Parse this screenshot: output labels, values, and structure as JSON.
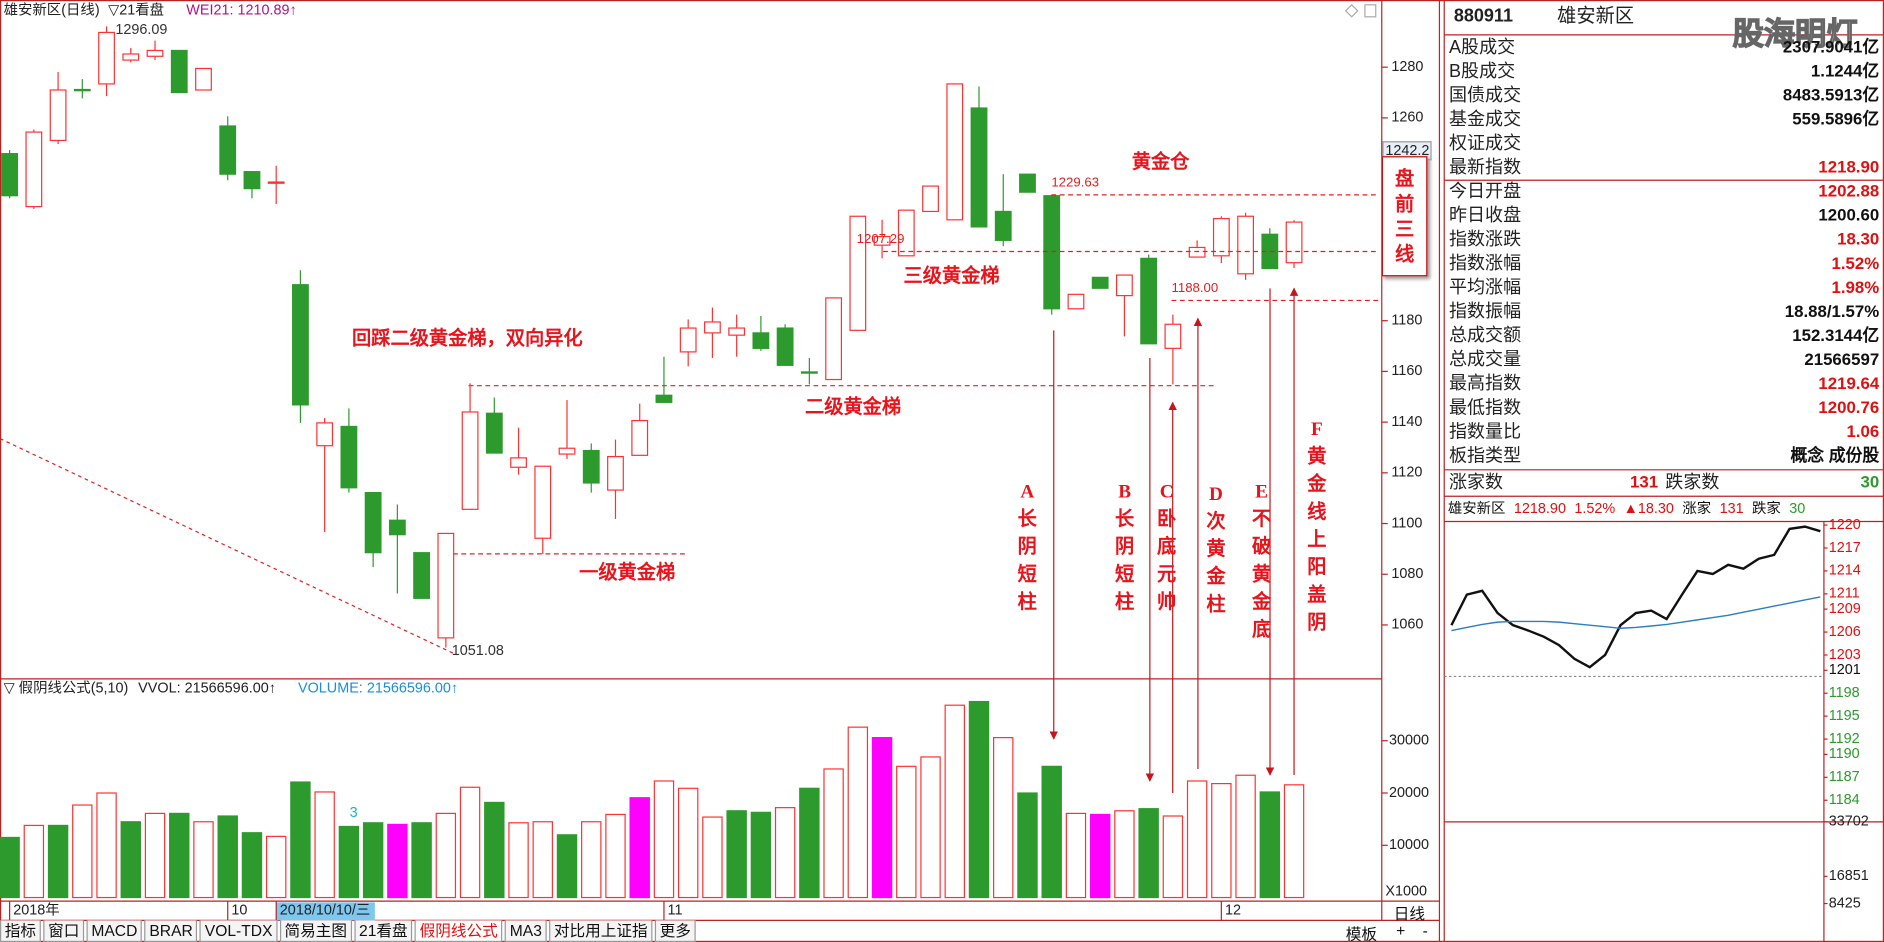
{
  "header": {
    "name": "雄安新区(日线)",
    "panel": "▽21看盘",
    "indicator": "WEI21: 1210.89↑"
  },
  "volume_header": {
    "formula": "▽ 假阴线公式(5,10)",
    "vvol": "VVOL: 21566596.00↑",
    "volume": "VOLUME: 21566596.00↑"
  },
  "cursor_price": "1242.2",
  "volume_unit": "X1000",
  "volume_note": "3",
  "chart_data": [
    {
      "type": "candlestick",
      "categories": [
        "2018年",
        null,
        null,
        null,
        null,
        null,
        null,
        null,
        null,
        "10",
        null,
        "2018/10/10/三",
        null,
        null,
        null,
        null,
        null,
        null,
        null,
        null,
        null,
        null,
        null,
        null,
        null,
        null,
        null,
        "11",
        null,
        null,
        null,
        null,
        null,
        null,
        null,
        null,
        null,
        null,
        null,
        null,
        null,
        null,
        null,
        null,
        null,
        null,
        null,
        null,
        null,
        null,
        "12",
        null,
        null,
        null
      ],
      "open": [
        1245.9,
        1225.0,
        1251.1,
        1271.2,
        1273.4,
        1282.8,
        1284.3,
        1286.6,
        1271.0,
        1256.8,
        1238.8,
        1234.3,
        1194.2,
        1130.7,
        1138.3,
        1112.2,
        1101.3,
        1088.5,
        1054.9,
        1105.6,
        1143.5,
        1122.2,
        1094.2,
        1127.4,
        1128.8,
        1113.2,
        1126.9,
        1150.6,
        1167.7,
        1175.2,
        1174.3,
        1175.2,
        1177.1,
        1159.8,
        1156.8,
        1176.2,
        1209.8,
        1205.6,
        1223.1,
        1219.8,
        1263.9,
        1223.1,
        1237.8,
        1229.3,
        1184.7,
        1197.1,
        1189.9,
        1204.6,
        1169.1,
        1205.1,
        1205.6,
        1198.5,
        1214.1,
        1202.88
      ],
      "high": [
        1247.3,
        1255.4,
        1278.1,
        1275.3,
        1296.09,
        1287.6,
        1290.5,
        1286.6,
        1279.5,
        1260.6,
        1238.8,
        1241.1,
        1199.9,
        1141.6,
        1145.4,
        1112.2,
        1107.5,
        1088.5,
        1096.1,
        1155.3,
        1149.7,
        1137.8,
        1122.6,
        1148.7,
        1131.6,
        1133.1,
        1147.3,
        1165.8,
        1180.5,
        1185.2,
        1182.4,
        1181.9,
        1178.6,
        1165.3,
        1189.0,
        1221.2,
        1219.8,
        1223.6,
        1233.1,
        1273.4,
        1272.4,
        1237.8,
        1237.8,
        1229.63,
        1190.4,
        1197.1,
        1198.0,
        1206.1,
        1182.4,
        1211.7,
        1221.2,
        1222.6,
        1216.5,
        1219.64
      ],
      "low": [
        1228.3,
        1224.1,
        1249.7,
        1267.7,
        1268.6,
        1281.9,
        1282.8,
        1270.0,
        1271.0,
        1235.4,
        1228.3,
        1226.0,
        1139.7,
        1096.6,
        1112.2,
        1082.8,
        1072.4,
        1070.5,
        1051.08,
        1105.6,
        1127.8,
        1119.3,
        1088.0,
        1125.5,
        1112.2,
        1101.8,
        1126.9,
        1147.8,
        1162.0,
        1165.3,
        1165.8,
        1168.1,
        1162.4,
        1154.9,
        1156.8,
        1176.2,
        1204.6,
        1205.6,
        1223.1,
        1219.8,
        1217.0,
        1209.4,
        1230.7,
        1182.4,
        1184.7,
        1192.8,
        1173.8,
        1170.9,
        1154.9,
        1205.1,
        1202.7,
        1196.1,
        1200.4,
        1200.76
      ],
      "close": [
        1229.3,
        1254.4,
        1271.0,
        1270.8,
        1293.7,
        1285.2,
        1286.6,
        1270.0,
        1279.5,
        1237.8,
        1232.1,
        1234.7,
        1146.8,
        1139.7,
        1114.1,
        1088.5,
        1095.6,
        1070.5,
        1096.1,
        1144.0,
        1127.8,
        1125.9,
        1122.6,
        1129.7,
        1116.0,
        1126.4,
        1140.6,
        1147.8,
        1177.1,
        1179.5,
        1177.1,
        1169.1,
        1162.4,
        1159.6,
        1189.0,
        1221.2,
        1213.2,
        1223.6,
        1233.1,
        1273.4,
        1217.0,
        1211.7,
        1230.7,
        1184.7,
        1190.4,
        1192.8,
        1198.0,
        1170.9,
        1178.6,
        1208.9,
        1220.3,
        1221.2,
        1200.6,
        1218.9
      ],
      "up_color": "#ff3232",
      "down_color": "#2d9a2d",
      "ylim": [
        1041.1,
        1306.5
      ],
      "yticks": [
        1060,
        1080,
        1100,
        1120,
        1140,
        1160,
        1180,
        1200,
        1220,
        1240,
        1260,
        1280
      ],
      "price_labels": [
        {
          "value": 1296.09,
          "label": "1296.09"
        },
        {
          "value": 1051.08,
          "label": "1051.08"
        },
        {
          "value": 1229.63,
          "label": "1229.63"
        },
        {
          "value": 1207.29,
          "label": "1207.29"
        },
        {
          "value": 1188.0,
          "label": "1188.00"
        }
      ],
      "annotations": [
        "黄金仓",
        "三级黄金梯",
        "回踩二级黄金梯，双向异化",
        "二级黄金梯",
        "一级黄金梯"
      ],
      "box_label": "盘前三线",
      "callouts": [
        "A长阴短柱",
        "B长阴短柱",
        "C卧底元帅",
        "D次黄金柱",
        "E不破黄金底",
        "F黄金线上阳盖阴"
      ]
    },
    {
      "type": "bar",
      "values": [
        11500,
        13800,
        13800,
        17700,
        20000,
        14500,
        16100,
        16100,
        14500,
        15600,
        12400,
        11700,
        22100,
        20200,
        13600,
        14300,
        14000,
        14300,
        16100,
        21100,
        18200,
        14300,
        14500,
        12000,
        14500,
        15900,
        19100,
        22300,
        20900,
        15400,
        16600,
        16300,
        17200,
        20900,
        24600,
        32600,
        30600,
        25100,
        26900,
        36800,
        37500,
        30600,
        20000,
        25100,
        16100,
        15900,
        16600,
        17000,
        15600,
        22300,
        21800,
        23400,
        20200,
        21566.596
      ],
      "colors": [
        "#2d9a2d",
        "#ff3232",
        "#2d9a2d",
        "#ff3232",
        "#ff3232",
        "#2d9a2d",
        "#ff3232",
        "#2d9a2d",
        "#ff3232",
        "#2d9a2d",
        "#2d9a2d",
        "#ff3232",
        "#2d9a2d",
        "#ff3232",
        "#2d9a2d",
        "#2d9a2d",
        "#ff00ff",
        "#2d9a2d",
        "#ff3232",
        "#ff3232",
        "#2d9a2d",
        "#ff3232",
        "#ff3232",
        "#2d9a2d",
        "#ff3232",
        "#ff3232",
        "#ff00ff",
        "#ff3232",
        "#ff3232",
        "#ff3232",
        "#2d9a2d",
        "#2d9a2d",
        "#ff3232",
        "#2d9a2d",
        "#ff3232",
        "#ff3232",
        "#ff00ff",
        "#ff3232",
        "#ff3232",
        "#ff3232",
        "#2d9a2d",
        "#ff3232",
        "#2d9a2d",
        "#2d9a2d",
        "#ff3232",
        "#ff00ff",
        "#ff3232",
        "#2d9a2d",
        "#ff3232",
        "#ff3232",
        "#ff3232",
        "#ff3232",
        "#2d9a2d",
        "#ff3232"
      ],
      "hollow_color": "#ff3232",
      "ylim": [
        0,
        41839
      ],
      "yticks": [
        10000,
        20000,
        30000
      ]
    },
    {
      "type": "line",
      "categories": [
        null,
        null,
        null,
        null,
        null,
        null,
        null,
        null,
        null,
        null,
        null,
        null,
        null,
        null,
        null,
        null,
        null,
        null,
        null,
        null,
        null,
        null,
        null,
        null,
        null
      ],
      "series": [
        {
          "color": "#111111",
          "values": [
            1206.9,
            1210.9,
            1211.4,
            1208.5,
            1206.9,
            1206.2,
            1205.4,
            1204.3,
            1202.5,
            1201.4,
            1203.0,
            1206.9,
            1208.5,
            1208.8,
            1207.7,
            1210.9,
            1214.0,
            1213.6,
            1214.8,
            1214.3,
            1215.6,
            1216.1,
            1219.5,
            1219.8,
            1219.2
          ]
        },
        {
          "color": "#2a7fc0",
          "values": [
            1206.2,
            1206.6,
            1207.0,
            1207.3,
            1207.4,
            1207.4,
            1207.4,
            1207.3,
            1207.1,
            1206.9,
            1206.7,
            1206.5,
            1206.6,
            1206.8,
            1207.0,
            1207.3,
            1207.6,
            1207.9,
            1208.2,
            1208.6,
            1209.0,
            1209.4,
            1209.8,
            1210.2,
            1210.6
          ]
        }
      ],
      "reference": 1200.6,
      "ylim": [
        1181.8,
        1221.1
      ],
      "yticks": [
        1220,
        1217,
        1214,
        1211,
        1209,
        1206,
        1203,
        1201,
        1198,
        1195,
        1192,
        1190,
        1187,
        1184
      ],
      "y2lim": [
        8425,
        33702
      ],
      "y2ticks": [
        33702,
        16851,
        8425
      ],
      "header": [
        {
          "text": "雄安新区",
          "color": "#111111"
        },
        {
          "text": "1218.90",
          "color": "#e01010"
        },
        {
          "text": "1.52%",
          "color": "#e01010"
        },
        {
          "text": "▲18.30",
          "color": "#e01010"
        },
        {
          "text": "涨家",
          "color": "#111111"
        },
        {
          "text": "131",
          "color": "#e01010"
        },
        {
          "text": "跌家",
          "color": "#111111"
        },
        {
          "text": "30",
          "color": "#2d9a2d"
        }
      ]
    }
  ],
  "info": {
    "code": "880911",
    "name": "雄安新区",
    "logo": "股海明灯",
    "rows": [
      {
        "label": "A股成交",
        "value": "2307.9041亿",
        "color": "#111111"
      },
      {
        "label": "B股成交",
        "value": "1.1244亿",
        "color": "#111111"
      },
      {
        "label": "国债成交",
        "value": "8483.5913亿",
        "color": "#111111"
      },
      {
        "label": "基金成交",
        "value": "559.5896亿",
        "color": "#111111"
      },
      {
        "label": "权证成交",
        "color": "#111111"
      },
      {
        "label": "最新指数",
        "value": "1218.90",
        "color": "#e01010"
      },
      {
        "label": "今日开盘",
        "value": "1202.88",
        "color": "#e01010"
      },
      {
        "label": "昨日收盘",
        "value": "1200.60",
        "color": "#111111"
      },
      {
        "label": "指数涨跌",
        "value": "18.30",
        "color": "#e01010"
      },
      {
        "label": "指数涨幅",
        "value": "1.52%",
        "color": "#e01010"
      },
      {
        "label": "平均涨幅",
        "value": "1.98%",
        "color": "#e01010"
      },
      {
        "label": "指数振幅",
        "value": "18.88/1.57%",
        "color": "#111111"
      },
      {
        "label": "总成交额",
        "value": "152.3144亿",
        "color": "#111111"
      },
      {
        "label": "总成交量",
        "value": "21566597",
        "color": "#111111"
      },
      {
        "label": "最高指数",
        "value": "1219.64",
        "color": "#e01010"
      },
      {
        "label": "最低指数",
        "value": "1200.76",
        "color": "#e01010"
      },
      {
        "label": "指数量比",
        "value": "1.06",
        "color": "#e01010"
      },
      {
        "label": "板指类型",
        "value": "概念 成份股",
        "color": "#111111"
      }
    ],
    "breadth": {
      "up_label": "涨家数",
      "up": "131",
      "down_label": "跌家数",
      "down": "30"
    }
  },
  "toolbar": {
    "tabs": [
      "指标",
      "窗口",
      "MACD",
      "BRAR",
      "VOL-TDX",
      "简易主图",
      "21看盘",
      "假阴线公式",
      "MA3",
      "对比用上证指",
      "更多"
    ],
    "template": "模板",
    "period": "日线",
    "plus": "+",
    "minus": "-"
  }
}
